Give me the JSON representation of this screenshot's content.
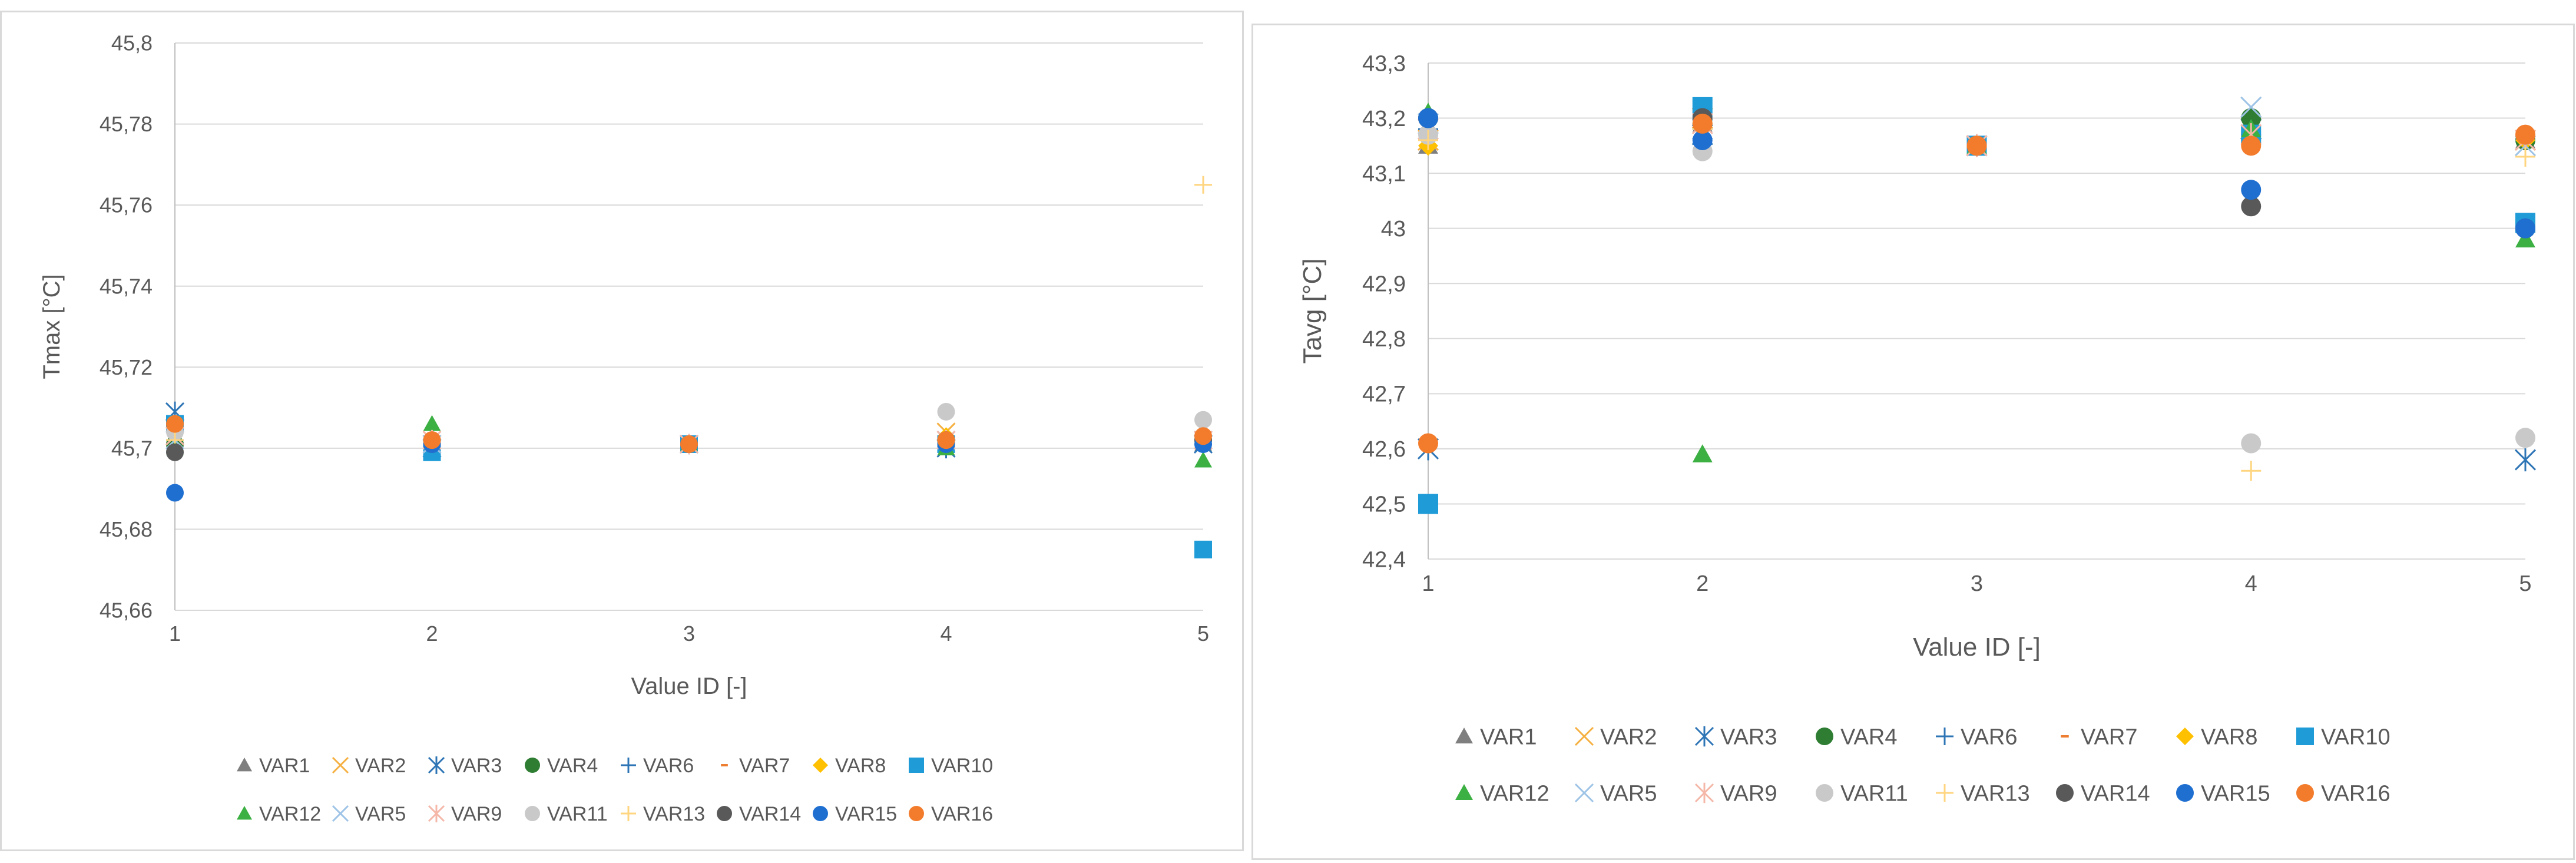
{
  "legend_names": [
    "VAR1",
    "VAR2",
    "VAR3",
    "VAR4",
    "VAR6",
    "VAR7",
    "VAR8",
    "VAR10",
    "VAR12",
    "VAR5",
    "VAR9",
    "VAR11",
    "VAR13",
    "VAR14",
    "VAR15",
    "VAR16"
  ],
  "series_styles": {
    "VAR1": {
      "marker": "triangle",
      "color": "#7f7f7f"
    },
    "VAR2": {
      "marker": "x",
      "color": "#f5b041"
    },
    "VAR3": {
      "marker": "asterisk",
      "color": "#2e75b6"
    },
    "VAR4": {
      "marker": "circle",
      "color": "#2e7d32"
    },
    "VAR6": {
      "marker": "plus",
      "color": "#2e75b6"
    },
    "VAR7": {
      "marker": "dash",
      "color": "#ed7d31"
    },
    "VAR8": {
      "marker": "diamond",
      "color": "#ffc000"
    },
    "VAR10": {
      "marker": "square",
      "color": "#1f9bd7"
    },
    "VAR12": {
      "marker": "triangle",
      "color": "#3cb043"
    },
    "VAR5": {
      "marker": "x",
      "color": "#9dc3e6"
    },
    "VAR9": {
      "marker": "asterisk",
      "color": "#f4b7a8"
    },
    "VAR11": {
      "marker": "circle",
      "color": "#c9c9c9"
    },
    "VAR13": {
      "marker": "plus",
      "color": "#ffd580"
    },
    "VAR14": {
      "marker": "circle",
      "color": "#595959"
    },
    "VAR15": {
      "marker": "circle",
      "color": "#1f6fd1"
    },
    "VAR16": {
      "marker": "circle",
      "color": "#f37c2c"
    }
  },
  "colors": {
    "grid": "#d9d9d9",
    "axis": "#bfbfbf",
    "text": "#595959",
    "panel_border": "#d9d9d9"
  },
  "chart_data": [
    {
      "type": "scatter",
      "title": "",
      "xlabel": "Value ID [-]",
      "ylabel": "Tmax [°C]",
      "xlim": [
        1,
        5
      ],
      "ylim": [
        45.66,
        45.8
      ],
      "grid": true,
      "legend": "bottom",
      "x_ticks": [
        1,
        2,
        3,
        4,
        5
      ],
      "x_tick_labels": [
        "1",
        "2",
        "3",
        "4",
        "5"
      ],
      "y_ticks": [
        45.66,
        45.68,
        45.7,
        45.72,
        45.74,
        45.76,
        45.78,
        45.8
      ],
      "y_tick_labels": [
        "45,66",
        "45,68",
        "45,7",
        "45,72",
        "45,74",
        "45,76",
        "45,78",
        "45,8"
      ],
      "series": [
        {
          "name": "VAR1",
          "x": [
            1,
            2,
            3,
            4,
            5
          ],
          "values": [
            45.702,
            45.701,
            45.701,
            45.701,
            45.701
          ]
        },
        {
          "name": "VAR2",
          "x": [
            1,
            2,
            3,
            4,
            5
          ],
          "values": [
            45.703,
            45.701,
            45.701,
            45.704,
            45.702
          ]
        },
        {
          "name": "VAR3",
          "x": [
            1,
            2,
            3,
            4,
            5
          ],
          "values": [
            45.709,
            45.7,
            45.701,
            45.7,
            45.701
          ]
        },
        {
          "name": "VAR4",
          "x": [
            1,
            2,
            3,
            4,
            5
          ],
          "values": [
            45.701,
            45.702,
            45.701,
            45.701,
            45.702
          ]
        },
        {
          "name": "VAR6",
          "x": [
            1,
            2,
            3,
            4,
            5
          ],
          "values": [
            45.702,
            45.701,
            45.701,
            45.701,
            45.701
          ]
        },
        {
          "name": "VAR7",
          "x": [
            1,
            2,
            3,
            4,
            5
          ],
          "values": [
            45.703,
            45.702,
            45.701,
            45.702,
            45.702
          ]
        },
        {
          "name": "VAR8",
          "x": [
            1,
            2,
            3,
            4,
            5
          ],
          "values": [
            45.704,
            45.702,
            45.701,
            45.703,
            45.702
          ]
        },
        {
          "name": "VAR10",
          "x": [
            1,
            2,
            3,
            4,
            5
          ],
          "values": [
            45.706,
            45.699,
            45.701,
            45.701,
            45.675
          ]
        },
        {
          "name": "VAR12",
          "x": [
            1,
            2,
            3,
            4,
            5
          ],
          "values": [
            45.7,
            45.706,
            45.701,
            45.7,
            45.697
          ]
        },
        {
          "name": "VAR5",
          "x": [
            1,
            2,
            3,
            4,
            5
          ],
          "values": [
            45.702,
            45.701,
            45.701,
            45.702,
            45.702
          ]
        },
        {
          "name": "VAR9",
          "x": [
            1,
            2,
            3,
            4,
            5
          ],
          "values": [
            45.703,
            45.702,
            45.701,
            45.702,
            45.702
          ]
        },
        {
          "name": "VAR11",
          "x": [
            1,
            2,
            3,
            4,
            5
          ],
          "values": [
            45.704,
            45.702,
            45.701,
            45.709,
            45.707
          ]
        },
        {
          "name": "VAR13",
          "x": [
            1,
            2,
            3,
            4,
            5
          ],
          "values": [
            45.702,
            45.701,
            45.701,
            45.702,
            45.765
          ]
        },
        {
          "name": "VAR14",
          "x": [
            1,
            2,
            3,
            4,
            5
          ],
          "values": [
            45.699,
            45.701,
            45.701,
            45.702,
            45.702
          ]
        },
        {
          "name": "VAR15",
          "x": [
            1,
            2,
            3,
            4,
            5
          ],
          "values": [
            45.689,
            45.701,
            45.701,
            45.701,
            45.701
          ]
        },
        {
          "name": "VAR16",
          "x": [
            1,
            2,
            3,
            4,
            5
          ],
          "values": [
            45.706,
            45.702,
            45.701,
            45.702,
            45.703
          ]
        }
      ]
    },
    {
      "type": "scatter",
      "title": "",
      "xlabel": "Value ID [-]",
      "ylabel": "Tavg [°C]",
      "xlim": [
        1,
        5
      ],
      "ylim": [
        42.4,
        43.3
      ],
      "grid": true,
      "legend": "bottom",
      "x_ticks": [
        1,
        2,
        3,
        4,
        5
      ],
      "x_tick_labels": [
        "1",
        "2",
        "3",
        "4",
        "5"
      ],
      "y_ticks": [
        42.4,
        42.5,
        42.6,
        42.7,
        42.8,
        42.9,
        43.0,
        43.1,
        43.2,
        43.3
      ],
      "y_tick_labels": [
        "42,4",
        "42,5",
        "42,6",
        "42,7",
        "42,8",
        "42,9",
        "43",
        "43,1",
        "43,2",
        "43,3"
      ],
      "series": [
        {
          "name": "VAR1",
          "x": [
            1,
            2,
            3,
            4,
            5
          ],
          "values": [
            43.15,
            43.19,
            43.15,
            43.17,
            43.16
          ]
        },
        {
          "name": "VAR2",
          "x": [
            1,
            2,
            3,
            4,
            5
          ],
          "values": [
            43.16,
            43.2,
            43.15,
            43.18,
            43.16
          ]
        },
        {
          "name": "VAR3",
          "x": [
            1,
            2,
            3,
            4,
            5
          ],
          "values": [
            42.6,
            43.17,
            43.15,
            43.18,
            42.58
          ]
        },
        {
          "name": "VAR4",
          "x": [
            1,
            2,
            3,
            4,
            5
          ],
          "values": [
            43.2,
            43.19,
            43.15,
            43.2,
            43.16
          ]
        },
        {
          "name": "VAR6",
          "x": [
            1,
            2,
            3,
            4,
            5
          ],
          "values": [
            43.18,
            43.18,
            43.15,
            43.17,
            43.16
          ]
        },
        {
          "name": "VAR7",
          "x": [
            1,
            2,
            3,
            4,
            5
          ],
          "values": [
            43.17,
            43.2,
            43.15,
            43.16,
            43.16
          ]
        },
        {
          "name": "VAR8",
          "x": [
            1,
            2,
            3,
            4,
            5
          ],
          "values": [
            43.15,
            43.19,
            43.15,
            43.16,
            43.16
          ]
        },
        {
          "name": "VAR10",
          "x": [
            1,
            2,
            3,
            4,
            5
          ],
          "values": [
            42.5,
            43.22,
            43.15,
            43.17,
            43.01
          ]
        },
        {
          "name": "VAR12",
          "x": [
            1,
            2,
            3,
            4,
            5
          ],
          "values": [
            43.21,
            42.59,
            43.15,
            43.18,
            42.98
          ]
        },
        {
          "name": "VAR5",
          "x": [
            1,
            2,
            3,
            4,
            5
          ],
          "values": [
            43.19,
            43.18,
            43.15,
            43.22,
            43.15
          ]
        },
        {
          "name": "VAR9",
          "x": [
            1,
            2,
            3,
            4,
            5
          ],
          "values": [
            43.18,
            43.19,
            43.15,
            43.17,
            43.16
          ]
        },
        {
          "name": "VAR11",
          "x": [
            1,
            2,
            3,
            4,
            5
          ],
          "values": [
            43.17,
            43.14,
            43.15,
            42.61,
            42.62
          ]
        },
        {
          "name": "VAR13",
          "x": [
            1,
            2,
            3,
            4,
            5
          ],
          "values": [
            43.16,
            43.18,
            43.15,
            42.56,
            43.13
          ]
        },
        {
          "name": "VAR14",
          "x": [
            1,
            2,
            3,
            4,
            5
          ],
          "values": [
            43.2,
            43.2,
            43.15,
            43.04,
            43.0
          ]
        },
        {
          "name": "VAR15",
          "x": [
            1,
            2,
            3,
            4,
            5
          ],
          "values": [
            43.2,
            43.16,
            43.15,
            43.07,
            43.0
          ]
        },
        {
          "name": "VAR16",
          "x": [
            1,
            2,
            3,
            4,
            5
          ],
          "values": [
            42.61,
            43.19,
            43.15,
            43.15,
            43.17
          ]
        }
      ]
    }
  ]
}
